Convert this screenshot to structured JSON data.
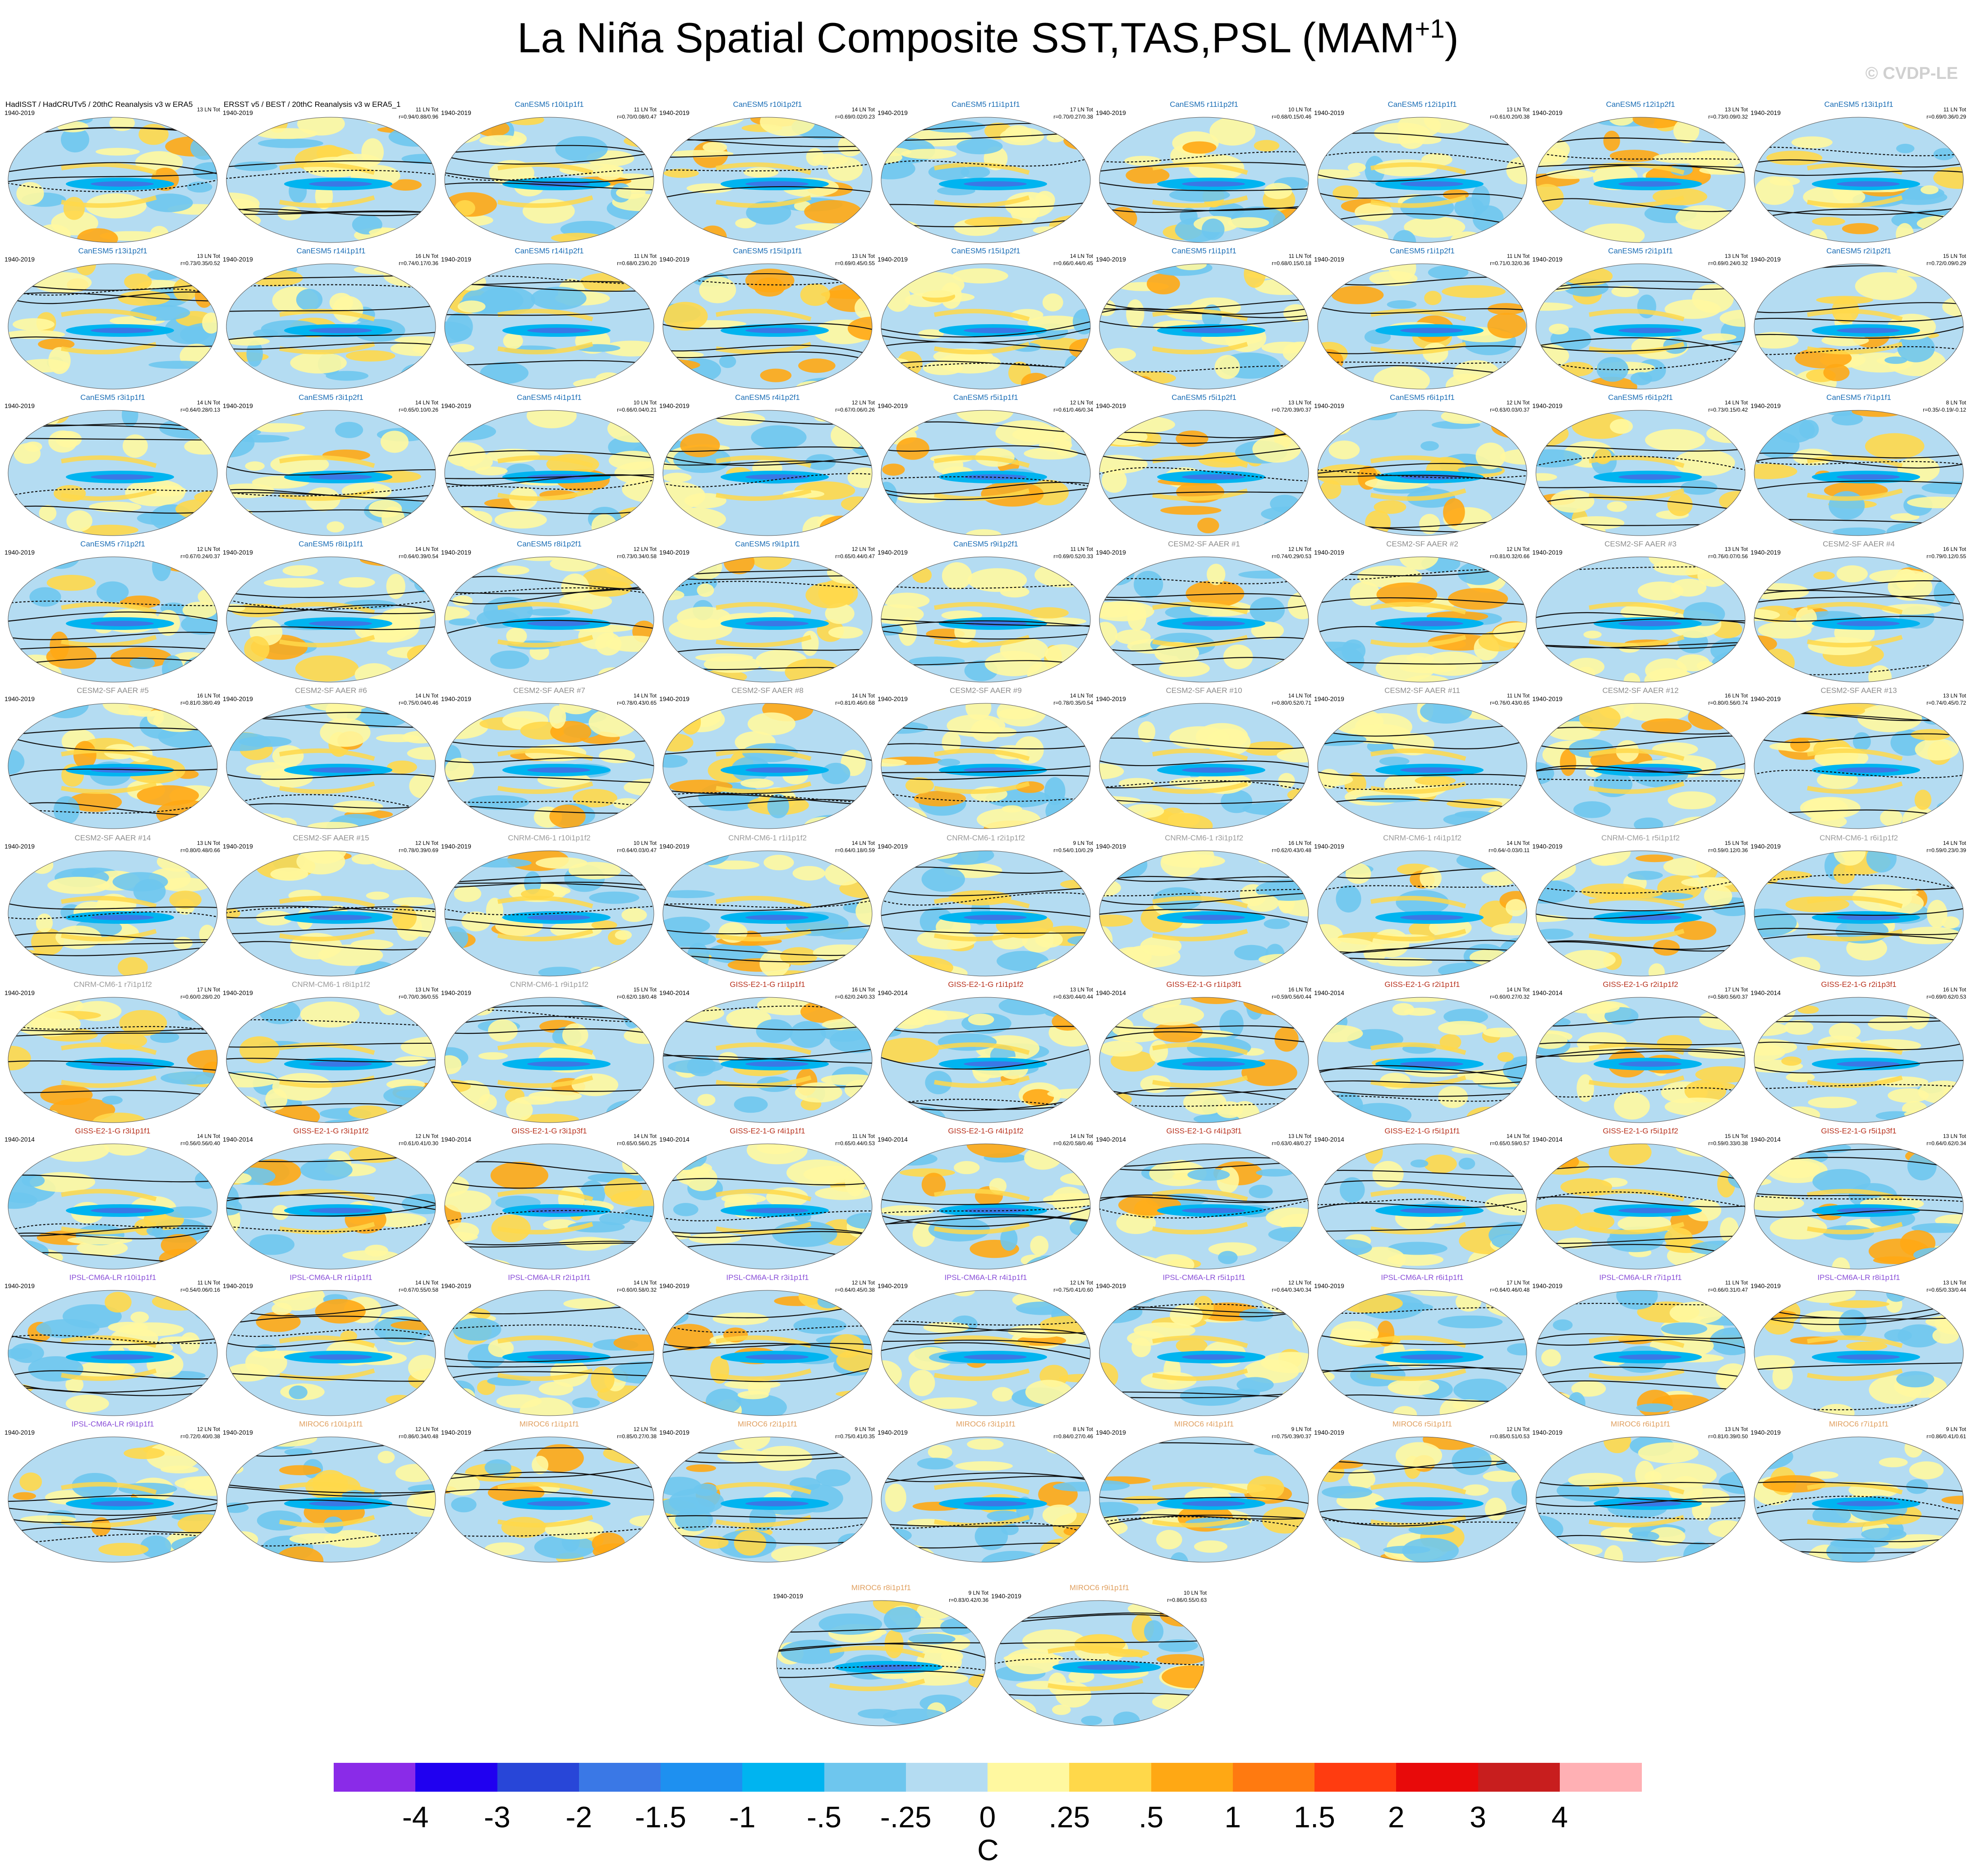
{
  "title": "La Niña Spatial Composite SST,TAS,PSL (MAM",
  "title_superscript": "+1",
  "title_suffix": ")",
  "watermark": "© CVDP-LE",
  "chart_data": {
    "type": "heatmap",
    "description_fields": "grid of global map panels; filled colors show SST/TAS composite anomaly, black contours show PSL",
    "unit": "C",
    "panels": [
      {
        "name": "HadISST / HadCRUTv5 / 20thC Reanalysis v3 w ERA5",
        "years": "1940-2019",
        "count": "13 LN Tot",
        "stats": "",
        "color": "#000000"
      },
      {
        "name": "ERSST v5 / BEST / 20thC Reanalysis v3 w ERA5_1",
        "years": "1940-2019",
        "count": "11 LN Tot",
        "stats": "r=0.94/0.88/0.96",
        "color": "#000000"
      },
      {
        "name": "CanESM5 r10i1p1f1",
        "years": "1940-2019",
        "count": "11 LN Tot",
        "stats": "r=0.70/0.08/0.47",
        "color": "#1a6db5"
      },
      {
        "name": "CanESM5 r10i1p2f1",
        "years": "1940-2019",
        "count": "14 LN Tot",
        "stats": "r=0.69/0.02/0.23",
        "color": "#1a6db5"
      },
      {
        "name": "CanESM5 r11i1p1f1",
        "years": "1940-2019",
        "count": "17 LN Tot",
        "stats": "r=0.70/0.27/0.38",
        "color": "#1a6db5"
      },
      {
        "name": "CanESM5 r11i1p2f1",
        "years": "1940-2019",
        "count": "10 LN Tot",
        "stats": "r=0.68/0.15/0.46",
        "color": "#1a6db5"
      },
      {
        "name": "CanESM5 r12i1p1f1",
        "years": "1940-2019",
        "count": "13 LN Tot",
        "stats": "r=0.61/0.20/0.38",
        "color": "#1a6db5"
      },
      {
        "name": "CanESM5 r12i1p2f1",
        "years": "1940-2019",
        "count": "13 LN Tot",
        "stats": "r=0.73/0.09/0.32",
        "color": "#1a6db5"
      },
      {
        "name": "CanESM5 r13i1p1f1",
        "years": "1940-2019",
        "count": "11 LN Tot",
        "stats": "r=0.69/0.36/0.29",
        "color": "#1a6db5"
      },
      {
        "name": "CanESM5 r13i1p2f1",
        "years": "1940-2019",
        "count": "13 LN Tot",
        "stats": "r=0.73/0.35/0.52",
        "color": "#1a6db5"
      },
      {
        "name": "CanESM5 r14i1p1f1",
        "years": "1940-2019",
        "count": "16 LN Tot",
        "stats": "r=0.74/0.17/0.36",
        "color": "#1a6db5"
      },
      {
        "name": "CanESM5 r14i1p2f1",
        "years": "1940-2019",
        "count": "11 LN Tot",
        "stats": "r=0.68/0.23/0.20",
        "color": "#1a6db5"
      },
      {
        "name": "CanESM5 r15i1p1f1",
        "years": "1940-2019",
        "count": "13 LN Tot",
        "stats": "r=0.69/0.45/0.55",
        "color": "#1a6db5"
      },
      {
        "name": "CanESM5 r15i1p2f1",
        "years": "1940-2019",
        "count": "14 LN Tot",
        "stats": "r=0.66/0.44/0.45",
        "color": "#1a6db5"
      },
      {
        "name": "CanESM5 r1i1p1f1",
        "years": "1940-2019",
        "count": "11 LN Tot",
        "stats": "r=0.68/0.15/0.18",
        "color": "#1a6db5"
      },
      {
        "name": "CanESM5 r1i1p2f1",
        "years": "1940-2019",
        "count": "11 LN Tot",
        "stats": "r=0.71/0.32/0.36",
        "color": "#1a6db5"
      },
      {
        "name": "CanESM5 r2i1p1f1",
        "years": "1940-2019",
        "count": "13 LN Tot",
        "stats": "r=0.69/0.24/0.32",
        "color": "#1a6db5"
      },
      {
        "name": "CanESM5 r2i1p2f1",
        "years": "1940-2019",
        "count": "15 LN Tot",
        "stats": "r=0.72/0.09/0.29",
        "color": "#1a6db5"
      },
      {
        "name": "CanESM5 r3i1p1f1",
        "years": "1940-2019",
        "count": "14 LN Tot",
        "stats": "r=0.64/0.28/0.13",
        "color": "#1a6db5"
      },
      {
        "name": "CanESM5 r3i1p2f1",
        "years": "1940-2019",
        "count": "14 LN Tot",
        "stats": "r=0.65/0.10/0.26",
        "color": "#1a6db5"
      },
      {
        "name": "CanESM5 r4i1p1f1",
        "years": "1940-2019",
        "count": "10 LN Tot",
        "stats": "r=0.66/0.04/0.21",
        "color": "#1a6db5"
      },
      {
        "name": "CanESM5 r4i1p2f1",
        "years": "1940-2019",
        "count": "12 LN Tot",
        "stats": "r=0.67/0.06/0.26",
        "color": "#1a6db5"
      },
      {
        "name": "CanESM5 r5i1p1f1",
        "years": "1940-2019",
        "count": "12 LN Tot",
        "stats": "r=0.61/0.46/0.34",
        "color": "#1a6db5"
      },
      {
        "name": "CanESM5 r5i1p2f1",
        "years": "1940-2019",
        "count": "13 LN Tot",
        "stats": "r=0.72/0.39/0.37",
        "color": "#1a6db5"
      },
      {
        "name": "CanESM5 r6i1p1f1",
        "years": "1940-2019",
        "count": "12 LN Tot",
        "stats": "r=0.63/0.03/0.37",
        "color": "#1a6db5"
      },
      {
        "name": "CanESM5 r6i1p2f1",
        "years": "1940-2019",
        "count": "14 LN Tot",
        "stats": "r=0.73/0.15/0.42",
        "color": "#1a6db5"
      },
      {
        "name": "CanESM5 r7i1p1f1",
        "years": "1940-2019",
        "count": "8 LN Tot",
        "stats": "r=0.35/-0.19/-0.12",
        "color": "#1a6db5"
      },
      {
        "name": "CanESM5 r7i1p2f1",
        "years": "1940-2019",
        "count": "12 LN Tot",
        "stats": "r=0.67/0.24/0.37",
        "color": "#1a6db5"
      },
      {
        "name": "CanESM5 r8i1p1f1",
        "years": "1940-2019",
        "count": "14 LN Tot",
        "stats": "r=0.64/0.39/0.54",
        "color": "#1a6db5"
      },
      {
        "name": "CanESM5 r8i1p2f1",
        "years": "1940-2019",
        "count": "12 LN Tot",
        "stats": "r=0.73/0.34/0.58",
        "color": "#1a6db5"
      },
      {
        "name": "CanESM5 r9i1p1f1",
        "years": "1940-2019",
        "count": "12 LN Tot",
        "stats": "r=0.65/0.44/0.47",
        "color": "#1a6db5"
      },
      {
        "name": "CanESM5 r9i1p2f1",
        "years": "1940-2019",
        "count": "11 LN Tot",
        "stats": "r=0.69/0.52/0.33",
        "color": "#1a6db5"
      },
      {
        "name": "CESM2-SF AAER #1",
        "years": "1940-2019",
        "count": "12 LN Tot",
        "stats": "r=0.74/0.29/0.53",
        "color": "#8c8c8c"
      },
      {
        "name": "CESM2-SF AAER #2",
        "years": "1940-2019",
        "count": "12 LN Tot",
        "stats": "r=0.81/0.32/0.66",
        "color": "#8c8c8c"
      },
      {
        "name": "CESM2-SF AAER #3",
        "years": "1940-2019",
        "count": "13 LN Tot",
        "stats": "r=0.76/0.07/0.56",
        "color": "#8c8c8c"
      },
      {
        "name": "CESM2-SF AAER #4",
        "years": "1940-2019",
        "count": "16 LN Tot",
        "stats": "r=0.79/0.12/0.55",
        "color": "#8c8c8c"
      },
      {
        "name": "CESM2-SF AAER #5",
        "years": "1940-2019",
        "count": "16 LN Tot",
        "stats": "r=0.81/0.38/0.49",
        "color": "#8c8c8c"
      },
      {
        "name": "CESM2-SF AAER #6",
        "years": "1940-2019",
        "count": "14 LN Tot",
        "stats": "r=0.75/0.04/0.46",
        "color": "#8c8c8c"
      },
      {
        "name": "CESM2-SF AAER #7",
        "years": "1940-2019",
        "count": "14 LN Tot",
        "stats": "r=0.78/0.43/0.65",
        "color": "#8c8c8c"
      },
      {
        "name": "CESM2-SF AAER #8",
        "years": "1940-2019",
        "count": "14 LN Tot",
        "stats": "r=0.81/0.46/0.68",
        "color": "#8c8c8c"
      },
      {
        "name": "CESM2-SF AAER #9",
        "years": "1940-2019",
        "count": "14 LN Tot",
        "stats": "r=0.78/0.35/0.54",
        "color": "#8c8c8c"
      },
      {
        "name": "CESM2-SF AAER #10",
        "years": "1940-2019",
        "count": "14 LN Tot",
        "stats": "r=0.80/0.52/0.71",
        "color": "#8c8c8c"
      },
      {
        "name": "CESM2-SF AAER #11",
        "years": "1940-2019",
        "count": "11 LN Tot",
        "stats": "r=0.76/0.43/0.65",
        "color": "#8c8c8c"
      },
      {
        "name": "CESM2-SF AAER #12",
        "years": "1940-2019",
        "count": "16 LN Tot",
        "stats": "r=0.80/0.56/0.74",
        "color": "#8c8c8c"
      },
      {
        "name": "CESM2-SF AAER #13",
        "years": "1940-2019",
        "count": "13 LN Tot",
        "stats": "r=0.74/0.45/0.72",
        "color": "#8c8c8c"
      },
      {
        "name": "CESM2-SF AAER #14",
        "years": "1940-2019",
        "count": "13 LN Tot",
        "stats": "r=0.80/0.48/0.66",
        "color": "#8c8c8c"
      },
      {
        "name": "CESM2-SF AAER #15",
        "years": "1940-2019",
        "count": "12 LN Tot",
        "stats": "r=0.78/0.39/0.69",
        "color": "#8c8c8c"
      },
      {
        "name": "CNRM-CM6-1 r10i1p1f2",
        "years": "1940-2019",
        "count": "10 LN Tot",
        "stats": "r=0.64/0.03/0.47",
        "color": "#9a9a9a"
      },
      {
        "name": "CNRM-CM6-1 r1i1p1f2",
        "years": "1940-2019",
        "count": "14 LN Tot",
        "stats": "r=0.64/0.18/0.59",
        "color": "#9a9a9a"
      },
      {
        "name": "CNRM-CM6-1 r2i1p1f2",
        "years": "1940-2019",
        "count": "9 LN Tot",
        "stats": "r=0.54/0.10/0.29",
        "color": "#9a9a9a"
      },
      {
        "name": "CNRM-CM6-1 r3i1p1f2",
        "years": "1940-2019",
        "count": "16 LN Tot",
        "stats": "r=0.62/0.43/0.48",
        "color": "#9a9a9a"
      },
      {
        "name": "CNRM-CM6-1 r4i1p1f2",
        "years": "1940-2019",
        "count": "14 LN Tot",
        "stats": "r=0.64/-0.03/0.11",
        "color": "#9a9a9a"
      },
      {
        "name": "CNRM-CM6-1 r5i1p1f2",
        "years": "1940-2019",
        "count": "15 LN Tot",
        "stats": "r=0.59/0.12/0.36",
        "color": "#9a9a9a"
      },
      {
        "name": "CNRM-CM6-1 r6i1p1f2",
        "years": "1940-2019",
        "count": "14 LN Tot",
        "stats": "r=0.59/0.23/0.39",
        "color": "#9a9a9a"
      },
      {
        "name": "CNRM-CM6-1 r7i1p1f2",
        "years": "1940-2019",
        "count": "17 LN Tot",
        "stats": "r=0.60/0.28/0.20",
        "color": "#9a9a9a"
      },
      {
        "name": "CNRM-CM6-1 r8i1p1f2",
        "years": "1940-2019",
        "count": "13 LN Tot",
        "stats": "r=0.70/0.36/0.55",
        "color": "#9a9a9a"
      },
      {
        "name": "CNRM-CM6-1 r9i1p1f2",
        "years": "1940-2019",
        "count": "15 LN Tot",
        "stats": "r=0.62/0.18/0.48",
        "color": "#9a9a9a"
      },
      {
        "name": "GISS-E2-1-G r1i1p1f1",
        "years": "1940-2014",
        "count": "16 LN Tot",
        "stats": "r=0.62/0.24/0.33",
        "color": "#b8321e"
      },
      {
        "name": "GISS-E2-1-G r1i1p1f2",
        "years": "1940-2014",
        "count": "13 LN Tot",
        "stats": "r=0.63/0.44/0.44",
        "color": "#b8321e"
      },
      {
        "name": "GISS-E2-1-G r1i1p3f1",
        "years": "1940-2014",
        "count": "16 LN Tot",
        "stats": "r=0.59/0.56/0.44",
        "color": "#b8321e"
      },
      {
        "name": "GISS-E2-1-G r2i1p1f1",
        "years": "1940-2014",
        "count": "14 LN Tot",
        "stats": "r=0.60/0.27/0.32",
        "color": "#b8321e"
      },
      {
        "name": "GISS-E2-1-G r2i1p1f2",
        "years": "1940-2014",
        "count": "17 LN Tot",
        "stats": "r=0.58/0.56/0.37",
        "color": "#b8321e"
      },
      {
        "name": "GISS-E2-1-G r2i1p3f1",
        "years": "1940-2014",
        "count": "16 LN Tot",
        "stats": "r=0.69/0.62/0.53",
        "color": "#b8321e"
      },
      {
        "name": "GISS-E2-1-G r3i1p1f1",
        "years": "1940-2014",
        "count": "14 LN Tot",
        "stats": "r=0.56/0.56/0.40",
        "color": "#b8321e"
      },
      {
        "name": "GISS-E2-1-G r3i1p1f2",
        "years": "1940-2014",
        "count": "12 LN Tot",
        "stats": "r=0.61/0.41/0.30",
        "color": "#b8321e"
      },
      {
        "name": "GISS-E2-1-G r3i1p3f1",
        "years": "1940-2014",
        "count": "14 LN Tot",
        "stats": "r=0.65/0.56/0.25",
        "color": "#b8321e"
      },
      {
        "name": "GISS-E2-1-G r4i1p1f1",
        "years": "1940-2014",
        "count": "11 LN Tot",
        "stats": "r=0.65/0.44/0.53",
        "color": "#b8321e"
      },
      {
        "name": "GISS-E2-1-G r4i1p1f2",
        "years": "1940-2014",
        "count": "14 LN Tot",
        "stats": "r=0.62/0.58/0.46",
        "color": "#b8321e"
      },
      {
        "name": "GISS-E2-1-G r4i1p3f1",
        "years": "1940-2014",
        "count": "13 LN Tot",
        "stats": "r=0.63/0.48/0.27",
        "color": "#b8321e"
      },
      {
        "name": "GISS-E2-1-G r5i1p1f1",
        "years": "1940-2014",
        "count": "14 LN Tot",
        "stats": "r=0.65/0.59/0.57",
        "color": "#b8321e"
      },
      {
        "name": "GISS-E2-1-G r5i1p1f2",
        "years": "1940-2014",
        "count": "15 LN Tot",
        "stats": "r=0.59/0.33/0.38",
        "color": "#b8321e"
      },
      {
        "name": "GISS-E2-1-G r5i1p3f1",
        "years": "1940-2014",
        "count": "13 LN Tot",
        "stats": "r=0.64/0.62/0.34",
        "color": "#b8321e"
      },
      {
        "name": "IPSL-CM6A-LR r10i1p1f1",
        "years": "1940-2019",
        "count": "11 LN Tot",
        "stats": "r=0.54/0.06/0.16",
        "color": "#8a4fd8"
      },
      {
        "name": "IPSL-CM6A-LR r1i1p1f1",
        "years": "1940-2019",
        "count": "14 LN Tot",
        "stats": "r=0.67/0.55/0.58",
        "color": "#8a4fd8"
      },
      {
        "name": "IPSL-CM6A-LR r2i1p1f1",
        "years": "1940-2019",
        "count": "14 LN Tot",
        "stats": "r=0.60/0.58/0.32",
        "color": "#8a4fd8"
      },
      {
        "name": "IPSL-CM6A-LR r3i1p1f1",
        "years": "1940-2019",
        "count": "12 LN Tot",
        "stats": "r=0.64/0.45/0.38",
        "color": "#8a4fd8"
      },
      {
        "name": "IPSL-CM6A-LR r4i1p1f1",
        "years": "1940-2019",
        "count": "12 LN Tot",
        "stats": "r=0.75/0.41/0.60",
        "color": "#8a4fd8"
      },
      {
        "name": "IPSL-CM6A-LR r5i1p1f1",
        "years": "1940-2019",
        "count": "12 LN Tot",
        "stats": "r=0.64/0.34/0.34",
        "color": "#8a4fd8"
      },
      {
        "name": "IPSL-CM6A-LR r6i1p1f1",
        "years": "1940-2019",
        "count": "17 LN Tot",
        "stats": "r=0.64/0.46/0.48",
        "color": "#8a4fd8"
      },
      {
        "name": "IPSL-CM6A-LR r7i1p1f1",
        "years": "1940-2019",
        "count": "11 LN Tot",
        "stats": "r=0.66/0.31/0.47",
        "color": "#8a4fd8"
      },
      {
        "name": "IPSL-CM6A-LR r8i1p1f1",
        "years": "1940-2019",
        "count": "13 LN Tot",
        "stats": "r=0.65/0.33/0.44",
        "color": "#8a4fd8"
      },
      {
        "name": "IPSL-CM6A-LR r9i1p1f1",
        "years": "1940-2019",
        "count": "12 LN Tot",
        "stats": "r=0.72/0.40/0.38",
        "color": "#8a4fd8"
      },
      {
        "name": "MIROC6 r10i1p1f1",
        "years": "1940-2019",
        "count": "12 LN Tot",
        "stats": "r=0.86/0.34/0.48",
        "color": "#e0a060"
      },
      {
        "name": "MIROC6 r1i1p1f1",
        "years": "1940-2019",
        "count": "12 LN Tot",
        "stats": "r=0.85/0.27/0.38",
        "color": "#e0a060"
      },
      {
        "name": "MIROC6 r2i1p1f1",
        "years": "1940-2019",
        "count": "9 LN Tot",
        "stats": "r=0.75/0.41/0.35",
        "color": "#e0a060"
      },
      {
        "name": "MIROC6 r3i1p1f1",
        "years": "1940-2019",
        "count": "8 LN Tot",
        "stats": "r=0.84/0.27/0.46",
        "color": "#e0a060"
      },
      {
        "name": "MIROC6 r4i1p1f1",
        "years": "1940-2019",
        "count": "9 LN Tot",
        "stats": "r=0.75/0.39/0.37",
        "color": "#e0a060"
      },
      {
        "name": "MIROC6 r5i1p1f1",
        "years": "1940-2019",
        "count": "12 LN Tot",
        "stats": "r=0.85/0.51/0.53",
        "color": "#e0a060"
      },
      {
        "name": "MIROC6 r6i1p1f1",
        "years": "1940-2019",
        "count": "13 LN Tot",
        "stats": "r=0.81/0.39/0.50",
        "color": "#e0a060"
      },
      {
        "name": "MIROC6 r7i1p1f1",
        "years": "1940-2019",
        "count": "9 LN Tot",
        "stats": "r=0.86/0.41/0.61",
        "color": "#e0a060"
      },
      {
        "name": "MIROC6 r8i1p1f1",
        "years": "1940-2019",
        "count": "9 LN Tot",
        "stats": "r=0.83/0.42/0.36",
        "color": "#e0a060"
      },
      {
        "name": "MIROC6 r9i1p1f1",
        "years": "1940-2019",
        "count": "10 LN Tot",
        "stats": "r=0.86/0.55/0.63",
        "color": "#e0a060"
      }
    ],
    "colorbar": {
      "labels": [
        "-4",
        "-3",
        "-2",
        "-1.5",
        "-1",
        "-.5",
        "-.25",
        "0",
        ".25",
        ".5",
        "1",
        "1.5",
        "2",
        "3",
        "4"
      ],
      "colors": [
        "#8a2be8",
        "#2000f0",
        "#2846d8",
        "#3a78e6",
        "#1e90f0",
        "#00b4f0",
        "#6ec6ee",
        "#b4dcf2",
        "#fff8a0",
        "#ffd84a",
        "#ffa814",
        "#ff7a10",
        "#ff3c10",
        "#e80a0a",
        "#c81e1e",
        "#ffb0b4"
      ],
      "unit": "C"
    }
  }
}
